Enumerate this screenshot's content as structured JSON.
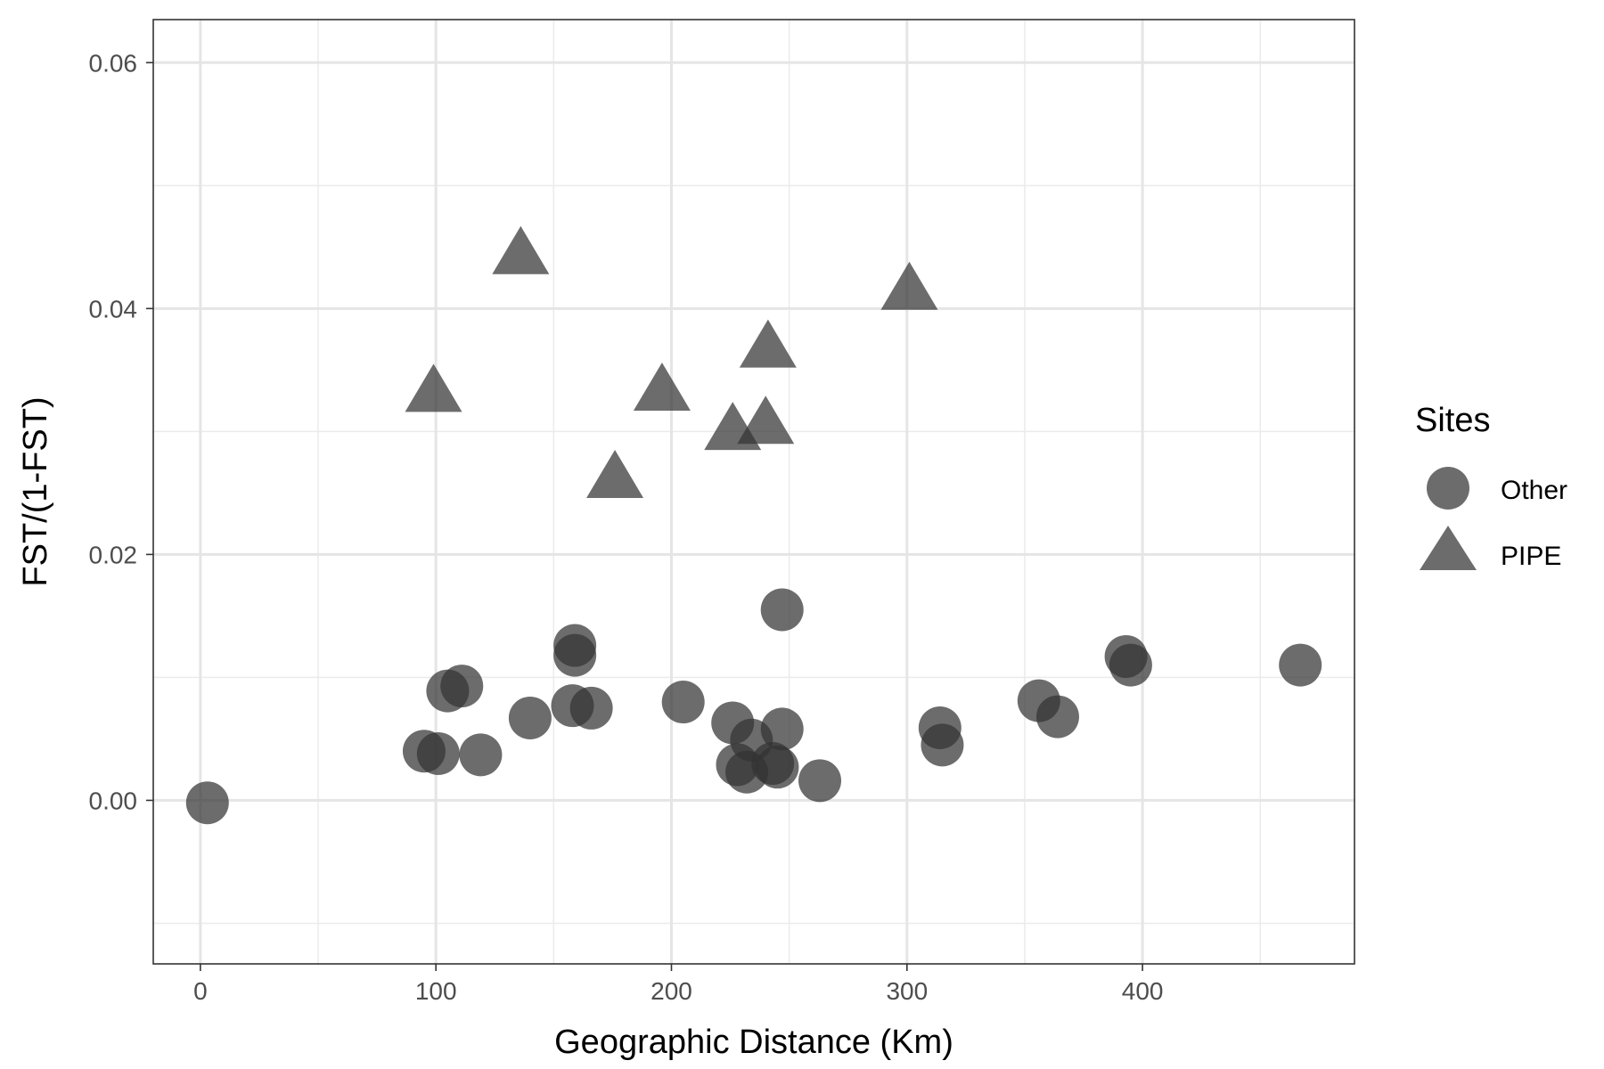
{
  "chart_data": {
    "type": "scatter",
    "title": "",
    "xlabel": "Geographic Distance (Km)",
    "ylabel": "FST/(1-FST)",
    "xlim": [
      -20,
      490
    ],
    "ylim": [
      -0.0133,
      0.0635
    ],
    "x_ticks": [
      0,
      100,
      200,
      300,
      400
    ],
    "x_tick_labels": [
      "0",
      "100",
      "200",
      "300",
      "400"
    ],
    "y_ticks": [
      0.0,
      0.02,
      0.04,
      0.06
    ],
    "y_tick_labels": [
      "0.00",
      "0.02",
      "0.04",
      "0.06"
    ],
    "grid": true,
    "legend": {
      "title": "Sites",
      "position": "right"
    },
    "point_color": "#333333",
    "point_opacity": 0.72,
    "series": [
      {
        "name": "Other",
        "marker": "circle",
        "points": [
          [
            3,
            -0.0002
          ],
          [
            95,
            0.004
          ],
          [
            101,
            0.0038
          ],
          [
            105,
            0.0089
          ],
          [
            111,
            0.0093
          ],
          [
            119,
            0.0037
          ],
          [
            140,
            0.0067
          ],
          [
            158,
            0.0077
          ],
          [
            159,
            0.0126
          ],
          [
            159,
            0.0118
          ],
          [
            166,
            0.0075
          ],
          [
            205,
            0.008
          ],
          [
            226,
            0.0063
          ],
          [
            228,
            0.0029
          ],
          [
            232,
            0.0023
          ],
          [
            234,
            0.0049
          ],
          [
            243,
            0.003
          ],
          [
            245,
            0.0027
          ],
          [
            247,
            0.0058
          ],
          [
            247,
            0.0155
          ],
          [
            263,
            0.0016
          ],
          [
            314,
            0.0059
          ],
          [
            315,
            0.0045
          ],
          [
            356,
            0.0081
          ],
          [
            364,
            0.0068
          ],
          [
            393,
            0.0117
          ],
          [
            395,
            0.011
          ],
          [
            467,
            0.011
          ]
        ]
      },
      {
        "name": "PIPE",
        "marker": "triangle",
        "points": [
          [
            99,
            0.0329
          ],
          [
            136,
            0.0441
          ],
          [
            176,
            0.0259
          ],
          [
            196,
            0.033
          ],
          [
            226,
            0.0298
          ],
          [
            240,
            0.0303
          ],
          [
            241,
            0.0365
          ],
          [
            301,
            0.0412
          ]
        ]
      }
    ]
  }
}
